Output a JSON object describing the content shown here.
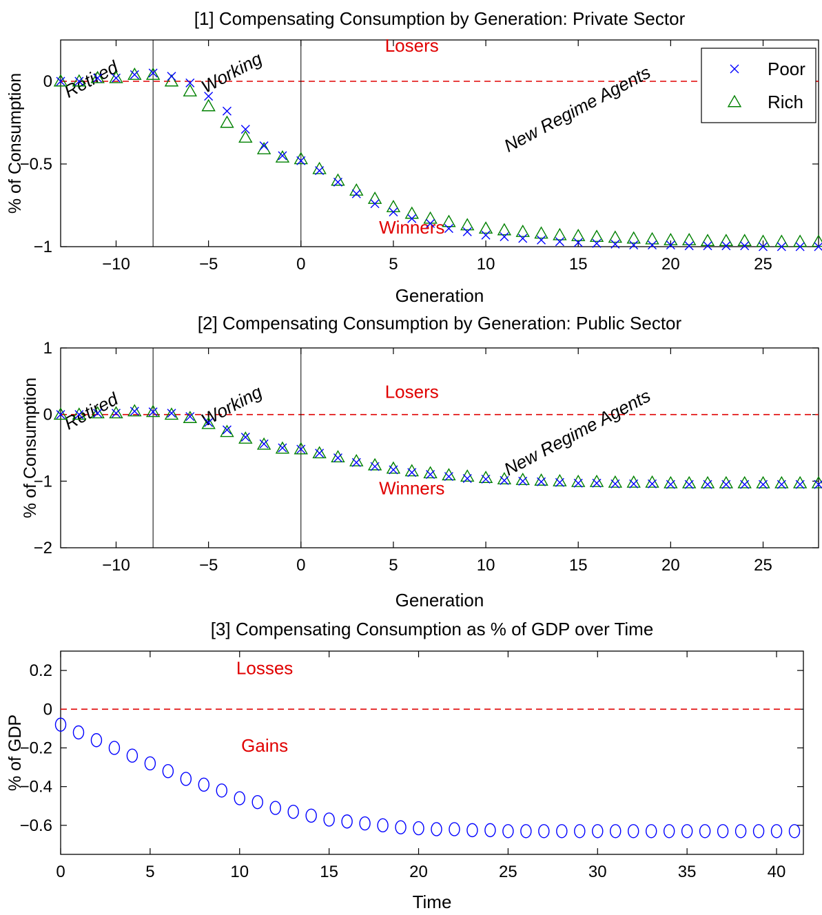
{
  "chart_data": [
    {
      "type": "scatter",
      "title": "[1] Compensating Consumption by Generation: Private Sector",
      "xlabel": "Generation",
      "ylabel": "% of Consumption",
      "xlim": [
        -13,
        28
      ],
      "ylim": [
        -1,
        0.25
      ],
      "xticks": [
        -10,
        -5,
        0,
        5,
        10,
        15,
        20,
        25
      ],
      "xtick_labels": [
        "−10",
        "−5",
        "0",
        "5",
        "10",
        "15",
        "20",
        "25"
      ],
      "yticks": [
        -1,
        -0.5,
        0
      ],
      "ytick_labels": [
        "−1",
        "−0.5",
        "0"
      ],
      "reference_line_y": 0,
      "vlines": [
        -8,
        0
      ],
      "legend": {
        "position": "top-right",
        "entries": [
          {
            "name": "Poor",
            "marker": "x",
            "color": "#0000ff"
          },
          {
            "name": "Rich",
            "marker": "triangle",
            "color": "#008000"
          }
        ]
      },
      "annotations": {
        "top": "Losers",
        "bottom": "Winners",
        "retired": "Retired",
        "working": "Working",
        "new_regime": "New Regime Agents"
      },
      "annotation_values": {
        "top": [
          6,
          0.18
        ],
        "bottom": [
          6,
          -0.92
        ],
        "retired": [
          -11.2,
          -0.02
        ],
        "working": [
          -3.6,
          0.02
        ],
        "new_regime": [
          15.1,
          -0.2
        ]
      },
      "x": [
        -13,
        -12,
        -11,
        -10,
        -9,
        -8,
        -7,
        -6,
        -5,
        -4,
        -3,
        -2,
        -1,
        0,
        1,
        2,
        3,
        4,
        5,
        6,
        7,
        8,
        9,
        10,
        11,
        12,
        13,
        14,
        15,
        16,
        17,
        18,
        19,
        20,
        21,
        22,
        23,
        24,
        25,
        26,
        27,
        28
      ],
      "series": [
        {
          "name": "Poor",
          "marker": "x",
          "color": "#0000ff",
          "values": [
            0.0,
            0.0,
            0.02,
            0.02,
            0.04,
            0.05,
            0.03,
            -0.01,
            -0.09,
            -0.18,
            -0.29,
            -0.39,
            -0.45,
            -0.48,
            -0.54,
            -0.61,
            -0.68,
            -0.74,
            -0.79,
            -0.83,
            -0.86,
            -0.89,
            -0.91,
            -0.93,
            -0.94,
            -0.95,
            -0.96,
            -0.97,
            -0.975,
            -0.98,
            -0.985,
            -0.99,
            -0.99,
            -0.99,
            -0.995,
            -0.995,
            -0.995,
            -0.995,
            -1.0,
            -1.0,
            -1.0,
            -1.0
          ]
        },
        {
          "name": "Rich",
          "marker": "triangle",
          "color": "#008000",
          "values": [
            0.0,
            0.0,
            0.02,
            0.02,
            0.04,
            0.04,
            0.0,
            -0.06,
            -0.15,
            -0.25,
            -0.34,
            -0.41,
            -0.46,
            -0.47,
            -0.53,
            -0.6,
            -0.66,
            -0.71,
            -0.76,
            -0.8,
            -0.83,
            -0.85,
            -0.87,
            -0.89,
            -0.9,
            -0.91,
            -0.92,
            -0.93,
            -0.935,
            -0.94,
            -0.945,
            -0.95,
            -0.955,
            -0.96,
            -0.96,
            -0.965,
            -0.965,
            -0.965,
            -0.97,
            -0.97,
            -0.97,
            -0.97
          ]
        }
      ]
    },
    {
      "type": "scatter",
      "title": "[2] Compensating Consumption by Generation: Public Sector",
      "xlabel": "Generation",
      "ylabel": "% of Consumption",
      "xlim": [
        -13,
        28
      ],
      "ylim": [
        -2,
        1
      ],
      "xticks": [
        -10,
        -5,
        0,
        5,
        10,
        15,
        20,
        25
      ],
      "xtick_labels": [
        "−10",
        "−5",
        "0",
        "5",
        "10",
        "15",
        "20",
        "25"
      ],
      "yticks": [
        -2,
        -1,
        0,
        1
      ],
      "ytick_labels": [
        "−2",
        "−1",
        "0",
        "1"
      ],
      "reference_line_y": 0,
      "vlines": [
        -8,
        0
      ],
      "annotations": {
        "top": "Losers",
        "bottom": "Winners",
        "retired": "Retired",
        "working": "Working",
        "new_regime": "New Regime Agents"
      },
      "annotation_values": {
        "top": [
          6,
          0.25
        ],
        "bottom": [
          6,
          -1.2
        ],
        "retired": [
          -11.2,
          -0.03
        ],
        "working": [
          -3.6,
          0.05
        ],
        "new_regime": [
          15.1,
          -0.35
        ]
      },
      "x": [
        -13,
        -12,
        -11,
        -10,
        -9,
        -8,
        -7,
        -6,
        -5,
        -4,
        -3,
        -2,
        -1,
        0,
        1,
        2,
        3,
        4,
        5,
        6,
        7,
        8,
        9,
        10,
        11,
        12,
        13,
        14,
        15,
        16,
        17,
        18,
        19,
        20,
        21,
        22,
        23,
        24,
        25,
        26,
        27,
        28
      ],
      "series": [
        {
          "name": "Poor",
          "marker": "x",
          "color": "#0000ff",
          "values": [
            0.0,
            0.0,
            0.02,
            0.02,
            0.05,
            0.04,
            0.02,
            -0.03,
            -0.12,
            -0.23,
            -0.34,
            -0.44,
            -0.5,
            -0.52,
            -0.58,
            -0.65,
            -0.72,
            -0.78,
            -0.83,
            -0.87,
            -0.9,
            -0.93,
            -0.96,
            -0.97,
            -0.99,
            -1.0,
            -1.01,
            -1.02,
            -1.03,
            -1.03,
            -1.04,
            -1.04,
            -1.04,
            -1.05,
            -1.05,
            -1.05,
            -1.05,
            -1.05,
            -1.05,
            -1.05,
            -1.05,
            -1.05
          ]
        },
        {
          "name": "Rich",
          "marker": "triangle",
          "color": "#008000",
          "values": [
            0.0,
            0.0,
            0.02,
            0.02,
            0.05,
            0.04,
            0.0,
            -0.05,
            -0.14,
            -0.26,
            -0.36,
            -0.45,
            -0.51,
            -0.52,
            -0.58,
            -0.64,
            -0.7,
            -0.76,
            -0.81,
            -0.85,
            -0.88,
            -0.91,
            -0.93,
            -0.95,
            -0.97,
            -0.98,
            -0.99,
            -1.0,
            -1.01,
            -1.01,
            -1.02,
            -1.02,
            -1.02,
            -1.03,
            -1.03,
            -1.03,
            -1.03,
            -1.03,
            -1.03,
            -1.03,
            -1.03,
            -1.03
          ]
        }
      ]
    },
    {
      "type": "scatter",
      "title": "[3] Compensating Consumption as % of GDP over Time",
      "xlabel": "Time",
      "ylabel": "% of GDP",
      "xlim": [
        0,
        41.5
      ],
      "ylim": [
        -0.75,
        0.3
      ],
      "xticks": [
        0,
        5,
        10,
        15,
        20,
        25,
        30,
        35,
        40
      ],
      "xtick_labels": [
        "0",
        "5",
        "10",
        "15",
        "20",
        "25",
        "30",
        "35",
        "40"
      ],
      "yticks": [
        -0.6,
        -0.4,
        -0.2,
        0,
        0.2
      ],
      "ytick_labels": [
        "−0.6",
        "−0.4",
        "−0.2",
        "0",
        "0.2"
      ],
      "reference_line_y": 0,
      "annotations": {
        "top": "Losses",
        "bottom": "Gains"
      },
      "annotation_values": {
        "top": [
          11.4,
          0.18
        ],
        "bottom": [
          11.4,
          -0.22
        ]
      },
      "x": [
        0,
        1,
        2,
        3,
        4,
        5,
        6,
        7,
        8,
        9,
        10,
        11,
        12,
        13,
        14,
        15,
        16,
        17,
        18,
        19,
        20,
        21,
        22,
        23,
        24,
        25,
        26,
        27,
        28,
        29,
        30,
        31,
        32,
        33,
        34,
        35,
        36,
        37,
        38,
        39,
        40,
        41
      ],
      "series": [
        {
          "name": "",
          "marker": "circle",
          "color": "#0000ff",
          "values": [
            -0.08,
            -0.12,
            -0.16,
            -0.2,
            -0.24,
            -0.28,
            -0.32,
            -0.36,
            -0.39,
            -0.42,
            -0.46,
            -0.48,
            -0.51,
            -0.53,
            -0.55,
            -0.57,
            -0.58,
            -0.59,
            -0.6,
            -0.61,
            -0.615,
            -0.62,
            -0.62,
            -0.625,
            -0.625,
            -0.63,
            -0.63,
            -0.63,
            -0.63,
            -0.63,
            -0.63,
            -0.63,
            -0.63,
            -0.63,
            -0.63,
            -0.63,
            -0.63,
            -0.63,
            -0.63,
            -0.63,
            -0.63,
            -0.63
          ]
        }
      ]
    }
  ]
}
